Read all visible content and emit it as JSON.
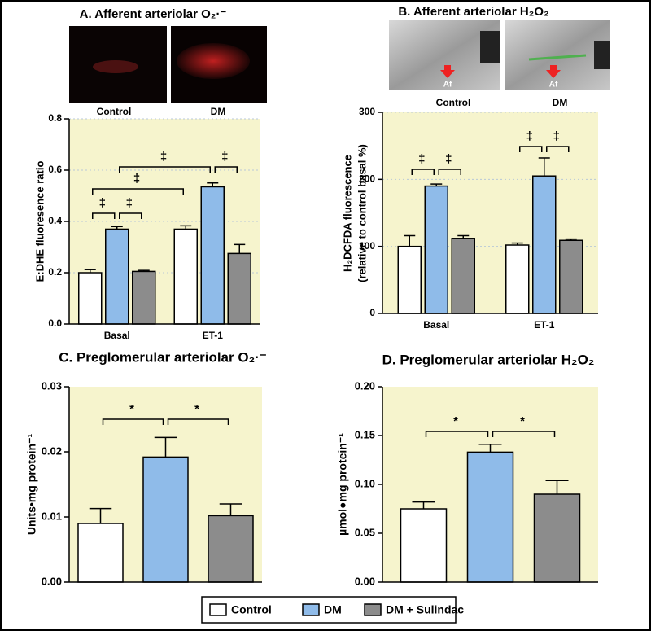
{
  "chart_data": [
    {
      "type": "bar",
      "title": "A. Afferent arteriolar O₂·⁻",
      "images": [
        {
          "caption": "Control"
        },
        {
          "caption": "DM"
        }
      ],
      "ylabel": "E:DHE fluoresence ratio",
      "categories": [
        "Basal",
        "ET-1"
      ],
      "series": [
        {
          "values": [
            0.2,
            0.37
          ],
          "errors": [
            0.012,
            0.013
          ]
        },
        {
          "values": [
            0.37,
            0.535
          ],
          "errors": [
            0.01,
            0.015
          ]
        },
        {
          "values": [
            0.205,
            0.275
          ],
          "errors": [
            0.004,
            0.035
          ]
        }
      ],
      "ylim": [
        0,
        0.8
      ],
      "yticks": [
        {
          "value": 0,
          "label": "0.0"
        },
        0.2,
        0.4,
        0.6,
        0.8
      ],
      "grid": true,
      "annotations": [
        "‡",
        "‡",
        "‡",
        "‡",
        "‡"
      ]
    },
    {
      "type": "bar",
      "title": "B. Afferent arteriolar H₂O₂",
      "images": [
        {
          "caption": "Control",
          "marker": "Af"
        },
        {
          "caption": "DM",
          "marker": "Af"
        }
      ],
      "ylabel": [
        "H₂DCFDA fluorescence",
        "(relative to control basal %)"
      ],
      "categories": [
        "Basal",
        "ET-1"
      ],
      "series": [
        {
          "values": [
            100,
            102
          ],
          "errors": [
            16,
            3
          ]
        },
        {
          "values": [
            190,
            205
          ],
          "errors": [
            3,
            27
          ]
        },
        {
          "values": [
            112,
            109
          ],
          "errors": [
            4,
            2
          ]
        }
      ],
      "ylim": [
        0,
        300
      ],
      "yticks": [
        0,
        100,
        200,
        300
      ],
      "grid": true,
      "annotations": [
        "‡",
        "‡",
        "‡",
        "‡"
      ]
    },
    {
      "type": "bar",
      "title": "C. Preglomerular arteriolar O₂·⁻",
      "ylabel": "Units•mg protein⁻¹",
      "series": [
        {
          "values": [
            0.009
          ],
          "errors": [
            0.0023
          ]
        },
        {
          "values": [
            0.0192
          ],
          "errors": [
            0.003
          ]
        },
        {
          "values": [
            0.0102
          ],
          "errors": [
            0.0018
          ]
        }
      ],
      "ylim": [
        0,
        0.03
      ],
      "yticks": [
        {
          "value": 0,
          "label": "0.00"
        },
        0.01,
        0.02,
        0.03
      ],
      "grid": false,
      "annotations": [
        "*",
        "*"
      ]
    },
    {
      "type": "bar",
      "title": "D. Preglomerular arteriolar H₂O₂",
      "ylabel": "µmol●mg protein⁻¹",
      "series": [
        {
          "values": [
            0.075
          ],
          "errors": [
            0.007
          ]
        },
        {
          "values": [
            0.133
          ],
          "errors": [
            0.008
          ]
        },
        {
          "values": [
            0.09
          ],
          "errors": [
            0.014
          ]
        }
      ],
      "ylim": [
        0,
        0.2
      ],
      "yticks": [
        {
          "value": 0,
          "label": "0.00"
        },
        0.05,
        {
          "value": 0.1,
          "label": "0.10"
        },
        0.15,
        {
          "value": 0.2,
          "label": "0.20"
        }
      ],
      "grid": false,
      "annotations": [
        "*",
        "*"
      ]
    }
  ],
  "legend": [
    {
      "name": "Control",
      "color": "#ffffff"
    },
    {
      "name": "DM",
      "color": "#8fbbe9"
    },
    {
      "name": "DM + Sulindac",
      "color": "#8c8c8c"
    }
  ]
}
